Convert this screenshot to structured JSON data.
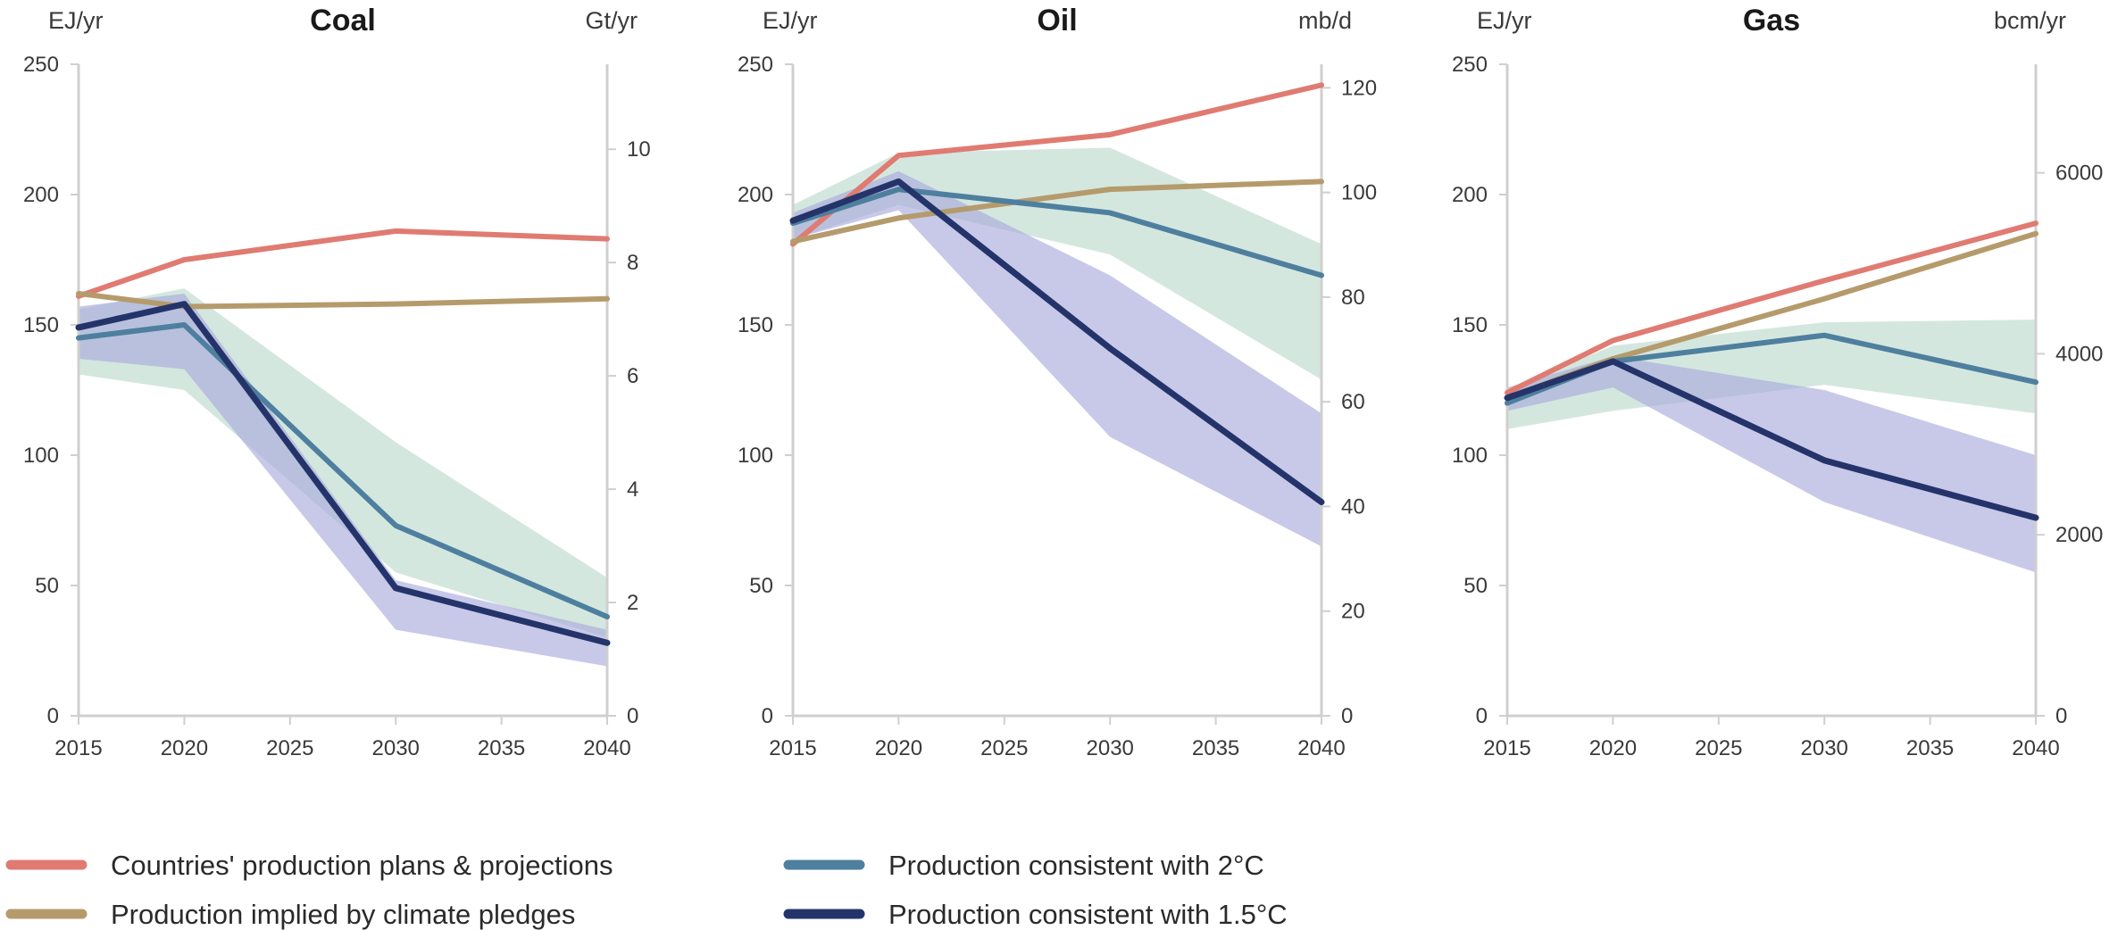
{
  "chart_data": [
    {
      "type": "line",
      "title": "Coal",
      "ylabel": "EJ/yr",
      "y2label": "Gt/yr",
      "x": [
        2015,
        2020,
        2030,
        2040
      ],
      "xticks": [
        2015,
        2020,
        2025,
        2030,
        2035,
        2040
      ],
      "ylim": [
        0,
        250
      ],
      "yticks": [
        0,
        50,
        100,
        150,
        200,
        250
      ],
      "y2lim": [
        0,
        11.5
      ],
      "y2ticks": [
        0,
        2,
        4,
        6,
        8,
        10
      ],
      "grid": false,
      "bands": [
        {
          "series": "Production consistent with 2°C",
          "lower": [
            131,
            125,
            55,
            30
          ],
          "upper": [
            156,
            164,
            105,
            53
          ]
        },
        {
          "series": "Production consistent with 1.5°C",
          "lower": [
            137,
            133,
            33,
            19
          ],
          "upper": [
            157,
            162,
            52,
            33
          ]
        }
      ],
      "series": [
        {
          "name": "Countries' production plans & projections",
          "values": [
            161,
            175,
            186,
            183
          ]
        },
        {
          "name": "Production implied by climate pledges",
          "values": [
            162,
            157,
            158,
            160
          ]
        },
        {
          "name": "Production consistent with 2°C",
          "values": [
            145,
            150,
            73,
            38
          ]
        },
        {
          "name": "Production consistent with 1.5°C",
          "values": [
            149,
            158,
            49,
            28
          ]
        }
      ]
    },
    {
      "type": "line",
      "title": "Oil",
      "ylabel": "EJ/yr",
      "y2label": "mb/d",
      "x": [
        2015,
        2020,
        2030,
        2040
      ],
      "xticks": [
        2015,
        2020,
        2025,
        2030,
        2035,
        2040
      ],
      "ylim": [
        0,
        250
      ],
      "yticks": [
        0,
        50,
        100,
        150,
        200,
        250
      ],
      "y2lim": [
        0,
        124.5
      ],
      "y2ticks": [
        0,
        20,
        40,
        60,
        80,
        100,
        120
      ],
      "grid": false,
      "bands": [
        {
          "series": "Production consistent with 2°C",
          "lower": [
            183,
            196,
            177,
            129
          ],
          "upper": [
            196,
            216,
            218,
            181
          ]
        },
        {
          "series": "Production consistent with 1.5°C",
          "lower": [
            183,
            194,
            107,
            65
          ],
          "upper": [
            193,
            209,
            169,
            116
          ]
        }
      ],
      "series": [
        {
          "name": "Countries' production plans & projections",
          "values": [
            181,
            215,
            223,
            242
          ]
        },
        {
          "name": "Production implied by climate pledges",
          "values": [
            182,
            191,
            202,
            205
          ]
        },
        {
          "name": "Production consistent with 2°C",
          "values": [
            189,
            202,
            193,
            169
          ]
        },
        {
          "name": "Production consistent with 1.5°C",
          "values": [
            190,
            205,
            141,
            82
          ]
        }
      ]
    },
    {
      "type": "line",
      "title": "Gas",
      "ylabel": "EJ/yr",
      "y2label": "bcm/yr",
      "x": [
        2015,
        2020,
        2030,
        2040
      ],
      "xticks": [
        2015,
        2020,
        2025,
        2030,
        2035,
        2040
      ],
      "ylim": [
        0,
        250
      ],
      "yticks": [
        0,
        50,
        100,
        150,
        200,
        250
      ],
      "y2lim": [
        0,
        7200
      ],
      "y2ticks": [
        0,
        2000,
        4000,
        6000
      ],
      "grid": false,
      "bands": [
        {
          "series": "Production consistent with 2°C",
          "lower": [
            110,
            117,
            127,
            116
          ],
          "upper": [
            125,
            142,
            151,
            152
          ]
        },
        {
          "series": "Production consistent with 1.5°C",
          "lower": [
            117,
            126,
            82,
            55
          ],
          "upper": [
            126,
            138,
            125,
            100
          ]
        }
      ],
      "series": [
        {
          "name": "Countries' production plans & projections",
          "values": [
            124,
            144,
            167,
            189
          ]
        },
        {
          "name": "Production implied by climate pledges",
          "values": [
            122,
            137,
            160,
            185
          ]
        },
        {
          "name": "Production consistent with 2°C",
          "values": [
            120,
            136,
            146,
            128
          ]
        },
        {
          "name": "Production consistent with 1.5°C",
          "values": [
            122,
            136,
            98,
            76
          ]
        }
      ]
    }
  ],
  "legend": {
    "placement": "bottom",
    "items": [
      {
        "label": "Countries' production plans & projections",
        "color": "#e07b72"
      },
      {
        "label": "Production implied by climate pledges",
        "color": "#b59b6c"
      },
      {
        "label": "Production consistent with 2°C",
        "color": "#4e7f9e"
      },
      {
        "label": "Production consistent with 1.5°C",
        "color": "#24346a"
      }
    ]
  },
  "colors": {
    "plans": "#e07b72",
    "pledges": "#b59b6c",
    "two_deg": "#4e7f9e",
    "one_five_deg": "#24346a",
    "two_deg_band": "#b9d9cc",
    "one_five_deg_band": "#a6a8dc",
    "axis": "#cfcfcf"
  }
}
